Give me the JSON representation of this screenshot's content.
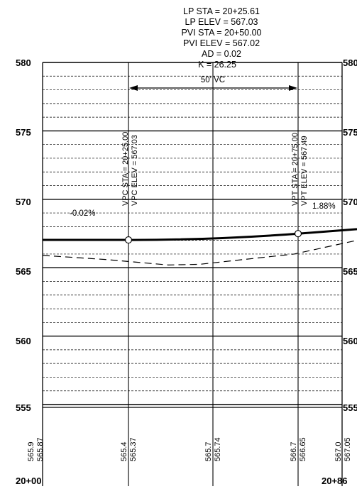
{
  "header": {
    "lines": [
      "LP STA = 20+25.61",
      "LP ELEV = 567.03",
      "PVI STA = 20+50.00",
      "PVI ELEV = 567.02",
      "AD = 0.02",
      "K = 26.25"
    ]
  },
  "curve_label": "50' VC",
  "axis": {
    "y_labels": [
      "580",
      "575",
      "570",
      "565",
      "560",
      "555"
    ],
    "elev_min": 555,
    "elev_max": 580,
    "sta_start_label": "20+00",
    "sta_end_label": "20+86"
  },
  "vpc": {
    "sta_label": "VPC STA = 20+25.00",
    "elev_label": "VPC ELEV = 567.03",
    "elev": 567.03
  },
  "vpt": {
    "sta_label": "VPT STA = 20+75.00",
    "elev_label": "VPT ELEV = 567.49",
    "elev": 567.49
  },
  "pvi": {
    "elev": 567.02
  },
  "grades": {
    "back": "-0.02%",
    "ahead": "1.88%"
  },
  "existing_ground": [
    {
      "x": 0,
      "elev": 565.9
    },
    {
      "x": 0.2,
      "elev": 565.6
    },
    {
      "x": 0.4,
      "elev": 565.2
    },
    {
      "x": 0.5,
      "elev": 565.25
    },
    {
      "x": 0.8,
      "elev": 566.0
    },
    {
      "x": 1.0,
      "elev": 567.0
    }
  ],
  "bottom_columns": [
    {
      "existing": "565.9",
      "proposed": "565.87"
    },
    {
      "existing": "565.4",
      "proposed": "565.37"
    },
    {
      "existing": "565.7",
      "proposed": "565.74"
    },
    {
      "existing": "566.7",
      "proposed": "566.65"
    },
    {
      "existing": "567.0",
      "proposed": "567.05"
    }
  ]
}
